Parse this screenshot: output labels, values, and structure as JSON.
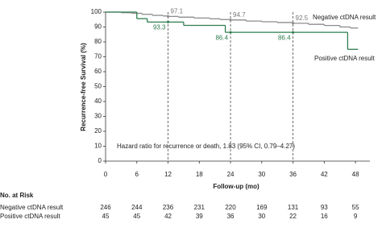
{
  "chart_data": {
    "type": "step",
    "xlabel": "Follow-up (mo)",
    "ylabel": "Recurrence-free Survival (%)",
    "xlim": [
      0,
      50
    ],
    "xticks": [
      0,
      6,
      12,
      18,
      24,
      30,
      36,
      42,
      48
    ],
    "ylim": [
      0,
      100
    ],
    "yticks": [
      0,
      10,
      20,
      30,
      40,
      50,
      60,
      70,
      80,
      90,
      100
    ],
    "landmarks": [
      12,
      24,
      36
    ],
    "series": [
      {
        "name": "Negative ctDNA result",
        "color": "#8c8c8c",
        "x": [
          0,
          3,
          5,
          7,
          9,
          11,
          12,
          14,
          17,
          20,
          22,
          24,
          27,
          30,
          33,
          36,
          39,
          42,
          45,
          47
        ],
        "values": [
          100,
          99.6,
          99.2,
          98.5,
          97.8,
          97.4,
          97.1,
          96.6,
          96.0,
          95.5,
          95.0,
          94.7,
          94.0,
          93.5,
          93.0,
          92.5,
          91.8,
          91.0,
          90.0,
          89.3
        ],
        "landmark_values": [
          97.1,
          94.7,
          92.5
        ]
      },
      {
        "name": "Positive ctDNA result",
        "color": "#2e7d4f",
        "x": [
          0,
          6,
          8,
          15,
          23,
          46.5
        ],
        "values": [
          100,
          95.6,
          93.3,
          91.1,
          86.4,
          75
        ],
        "landmark_values": [
          93.3,
          86.4,
          86.4
        ]
      }
    ],
    "annotation": "Hazard ratio for recurrence or death, 1.83 (95% CI, 0.79–4.27)",
    "risk_table": {
      "title": "No. at Risk",
      "rows": [
        {
          "label": "Negative ctDNA result",
          "values": [
            246,
            244,
            236,
            231,
            220,
            169,
            131,
            93,
            55
          ]
        },
        {
          "label": "Positive ctDNA result",
          "values": [
            45,
            45,
            42,
            39,
            36,
            30,
            22,
            16,
            9
          ]
        }
      ]
    }
  }
}
